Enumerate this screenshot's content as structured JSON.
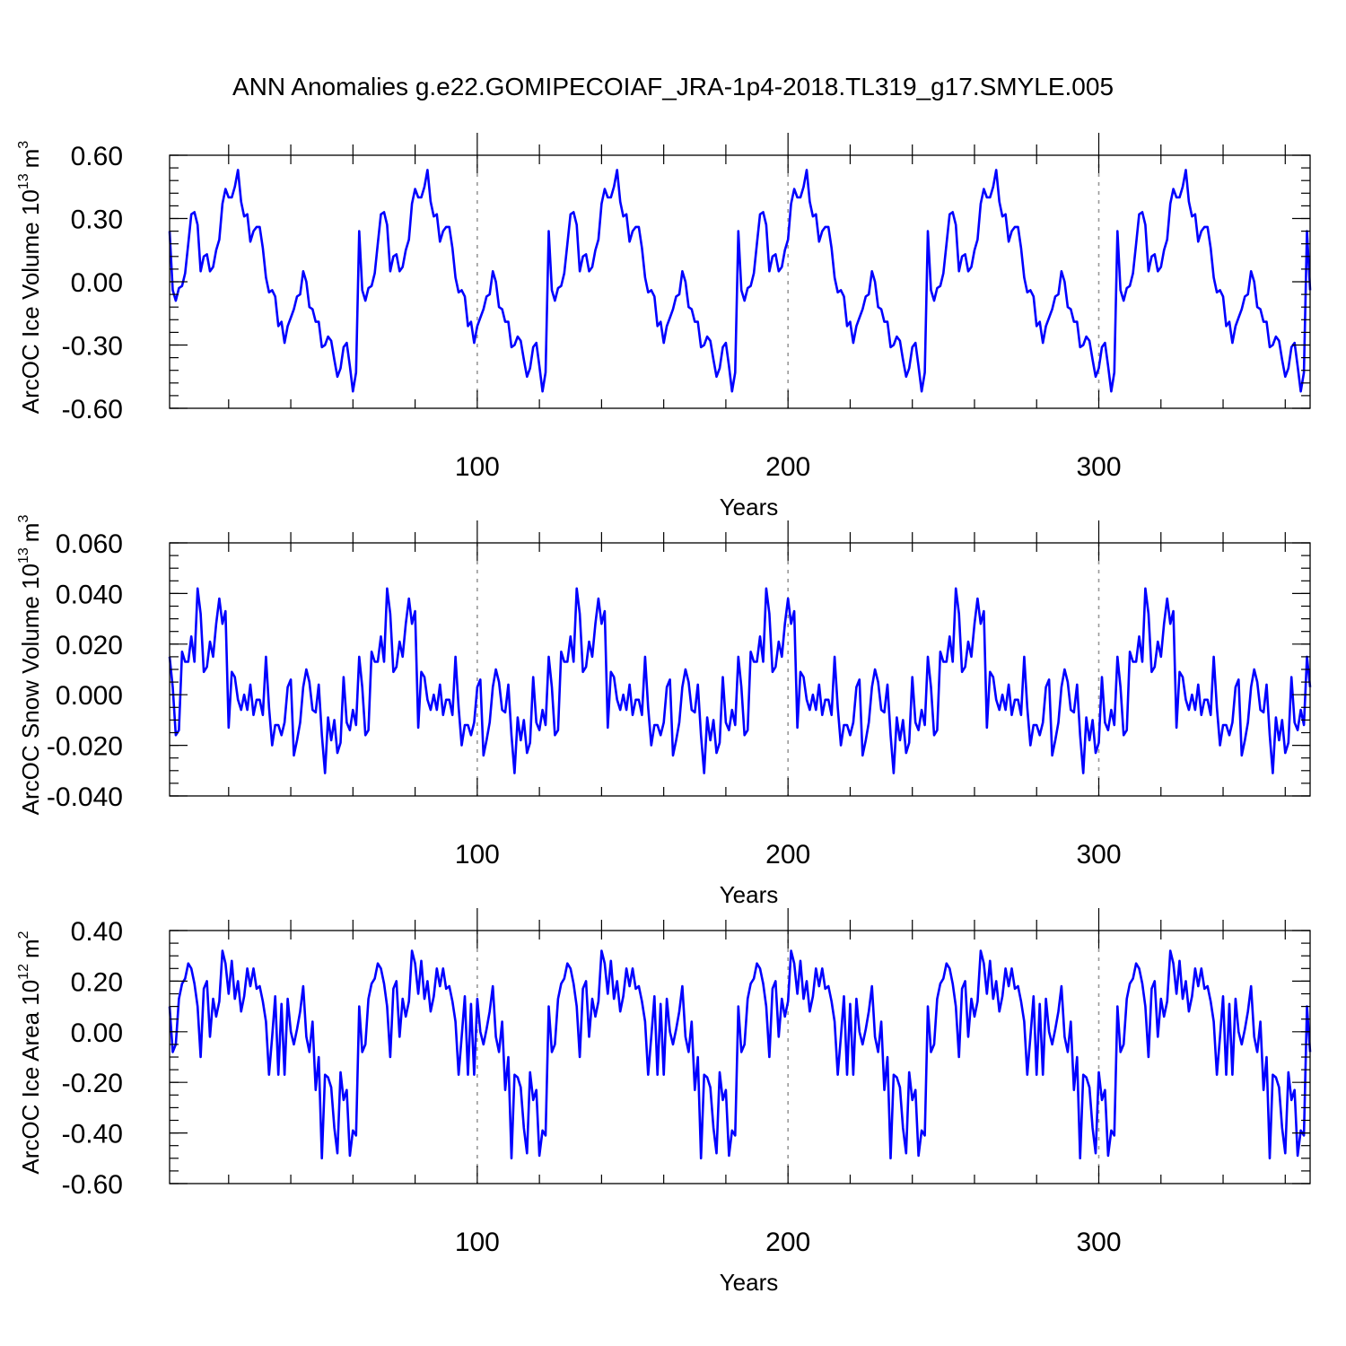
{
  "title": "ANN Anomalies g.e22.GOMIPECOIAF_JRA-1p4-2018.TL319_g17.SMYLE.005",
  "colors": {
    "series": "#0000ff",
    "grid": "#999999",
    "axis": "#000000"
  },
  "chart_data": [
    {
      "type": "line",
      "name": "ice-volume",
      "ylabel_main": "ArcOC Ice Volume 10",
      "ylabel_sup": "13",
      "ylabel_unit": "m",
      "ylabel_unit_sup": "3",
      "xlabel": "Years",
      "xlim": [
        1,
        368
      ],
      "ylim": [
        -0.6,
        0.6
      ],
      "xticks": [
        100,
        200,
        300
      ],
      "xtick_labels": [
        "100",
        "200",
        "300"
      ],
      "yticks": [
        -0.6,
        -0.3,
        0.0,
        0.3,
        0.6
      ],
      "ytick_labels": [
        "-0.60",
        "-0.30",
        "0.00",
        "0.30",
        "0.60"
      ],
      "x_minor_step": 20,
      "y_minor_step": 0.06,
      "period": 61,
      "cycle": [
        0.24,
        -0.04,
        -0.09,
        -0.03,
        -0.02,
        0.04,
        0.18,
        0.32,
        0.33,
        0.27,
        0.05,
        0.12,
        0.13,
        0.05,
        0.07,
        0.15,
        0.2,
        0.37,
        0.44,
        0.4,
        0.4,
        0.45,
        0.53,
        0.38,
        0.31,
        0.32,
        0.19,
        0.24,
        0.26,
        0.26,
        0.16,
        0.02,
        -0.05,
        -0.04,
        -0.07,
        -0.21,
        -0.19,
        -0.29,
        -0.21,
        -0.17,
        -0.13,
        -0.07,
        -0.06,
        0.05,
        0.0,
        -0.12,
        -0.13,
        -0.19,
        -0.19,
        -0.31,
        -0.3,
        -0.26,
        -0.28,
        -0.37,
        -0.45,
        -0.41,
        -0.31,
        -0.29,
        -0.4,
        -0.52,
        -0.43
      ]
    },
    {
      "type": "line",
      "name": "snow-volume",
      "ylabel_main": "ArcOC Snow Volume 10",
      "ylabel_sup": "13",
      "ylabel_unit": "m",
      "ylabel_unit_sup": "3",
      "xlabel": "Years",
      "xlim": [
        1,
        368
      ],
      "ylim": [
        -0.04,
        0.06
      ],
      "xticks": [
        100,
        200,
        300
      ],
      "xtick_labels": [
        "100",
        "200",
        "300"
      ],
      "yticks": [
        -0.04,
        -0.02,
        0.0,
        0.02,
        0.04,
        0.06
      ],
      "ytick_labels": [
        "-0.040",
        "-0.020",
        "0.000",
        "0.020",
        "0.040",
        "0.060"
      ],
      "x_minor_step": 20,
      "y_minor_step": 0.005,
      "period": 61,
      "cycle": [
        0.015,
        0.003,
        -0.016,
        -0.014,
        0.017,
        0.013,
        0.013,
        0.023,
        0.013,
        0.042,
        0.032,
        0.009,
        0.011,
        0.021,
        0.015,
        0.028,
        0.038,
        0.028,
        0.033,
        -0.013,
        0.009,
        0.007,
        -0.002,
        -0.006,
        0.0,
        -0.006,
        0.004,
        -0.008,
        -0.002,
        -0.002,
        -0.008,
        0.015,
        -0.005,
        -0.02,
        -0.012,
        -0.012,
        -0.016,
        -0.011,
        0.003,
        0.006,
        -0.024,
        -0.018,
        -0.011,
        0.003,
        0.01,
        0.005,
        -0.006,
        -0.007,
        0.004,
        -0.016,
        -0.031,
        -0.009,
        -0.018,
        -0.01,
        -0.023,
        -0.019,
        0.007,
        -0.011,
        -0.014,
        -0.006,
        -0.012
      ]
    },
    {
      "type": "line",
      "name": "ice-area",
      "ylabel_main": "ArcOC Ice Area 10",
      "ylabel_sup": "12",
      "ylabel_unit": "m",
      "ylabel_unit_sup": "2",
      "xlabel": "Years",
      "xlim": [
        1,
        368
      ],
      "ylim": [
        -0.6,
        0.4
      ],
      "xticks": [
        100,
        200,
        300
      ],
      "xtick_labels": [
        "100",
        "200",
        "300"
      ],
      "yticks": [
        -0.6,
        -0.4,
        -0.2,
        0.0,
        0.2,
        0.4
      ],
      "ytick_labels": [
        "-0.60",
        "-0.40",
        "-0.20",
        "0.00",
        "0.20",
        "0.40"
      ],
      "x_minor_step": 20,
      "y_minor_step": 0.05,
      "period": 61,
      "cycle": [
        0.1,
        -0.08,
        -0.05,
        0.13,
        0.19,
        0.21,
        0.27,
        0.25,
        0.19,
        0.1,
        -0.1,
        0.17,
        0.2,
        -0.02,
        0.13,
        0.06,
        0.12,
        0.32,
        0.27,
        0.15,
        0.28,
        0.13,
        0.2,
        0.08,
        0.14,
        0.25,
        0.18,
        0.25,
        0.17,
        0.18,
        0.12,
        0.04,
        -0.17,
        -0.02,
        0.14,
        -0.17,
        0.11,
        -0.17,
        0.13,
        0.0,
        -0.05,
        0.01,
        0.08,
        0.18,
        -0.02,
        -0.08,
        0.04,
        -0.23,
        -0.1,
        -0.5,
        -0.17,
        -0.18,
        -0.22,
        -0.38,
        -0.48,
        -0.16,
        -0.27,
        -0.23,
        -0.49,
        -0.39,
        -0.41
      ]
    }
  ]
}
